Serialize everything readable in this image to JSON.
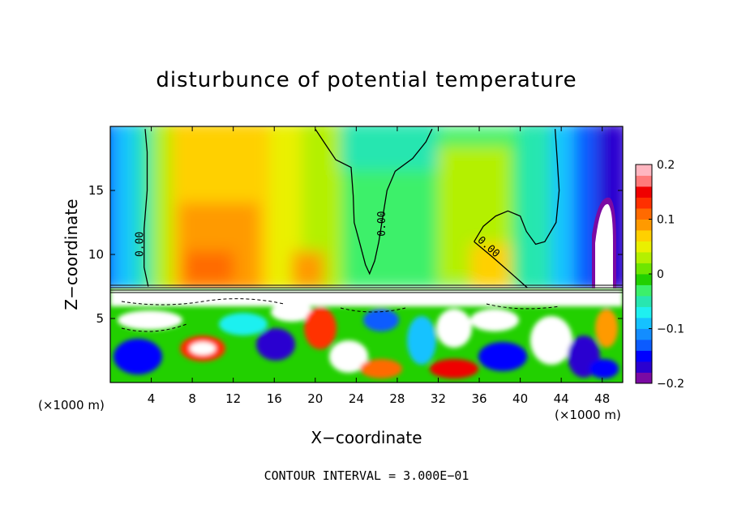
{
  "chart_data": {
    "type": "heatmap",
    "title": "disturbunce of potential temperature",
    "xlabel": "X−coordinate",
    "ylabel": "Z−coordinate",
    "x_unit": "(×1000 m)",
    "z_unit": "(×1000 m)",
    "xlim": [
      0,
      50
    ],
    "ylim": [
      0,
      20
    ],
    "x_ticks": [
      4,
      8,
      12,
      16,
      20,
      24,
      28,
      32,
      36,
      40,
      44,
      48
    ],
    "y_ticks": [
      5,
      10,
      15
    ],
    "colorbar": {
      "range": [
        -0.2,
        0.2
      ],
      "ticks": [
        {
          "value": 0.2,
          "label": "0.2"
        },
        {
          "value": 0.1,
          "label": "0.1"
        },
        {
          "value": 0,
          "label": "0"
        },
        {
          "value": -0.1,
          "label": "−0.1"
        },
        {
          "value": -0.2,
          "label": "−0.2"
        }
      ],
      "colors": [
        "#7b0aa3",
        "#2a00d0",
        "#0000ff",
        "#0b5bff",
        "#138dff",
        "#15c2ff",
        "#1ff0f0",
        "#28e6b0",
        "#3cf06a",
        "#22d000",
        "#6ee600",
        "#b4f000",
        "#eaf000",
        "#ffd000",
        "#ff9a00",
        "#ff6a00",
        "#ff3000",
        "#f00000",
        "#ff7a7a",
        "#ffb6c0"
      ]
    },
    "contour_labels": [
      {
        "x": 3.2,
        "z": 10.8,
        "text": "0.00",
        "rotate": -90
      },
      {
        "x": 26.8,
        "z": 12.4,
        "text": "0.00",
        "rotate": -90
      },
      {
        "x": 36.7,
        "z": 10.4,
        "text": "0.00",
        "rotate": 42
      }
    ],
    "zero_contours": [
      [
        [
          3.4,
          19.8
        ],
        [
          3.6,
          18
        ],
        [
          3.6,
          15
        ],
        [
          3.3,
          12
        ],
        [
          3.3,
          9
        ],
        [
          3.7,
          7.5
        ]
      ],
      [
        [
          20,
          19.8
        ],
        [
          21,
          18.6
        ],
        [
          22,
          17.4
        ],
        [
          23.5,
          16.8
        ],
        [
          23.7,
          14.6
        ],
        [
          23.8,
          12.5
        ],
        [
          24.3,
          11
        ],
        [
          24.9,
          9.2
        ],
        [
          25.3,
          8.5
        ],
        [
          25.8,
          9.5
        ],
        [
          26.2,
          11
        ],
        [
          26.6,
          13
        ],
        [
          27,
          15
        ],
        [
          27.8,
          16.5
        ],
        [
          29.5,
          17.5
        ],
        [
          30.8,
          18.8
        ],
        [
          31.4,
          19.8
        ]
      ],
      [
        [
          35.5,
          11
        ],
        [
          36.4,
          12.2
        ],
        [
          37.6,
          13
        ],
        [
          38.8,
          13.4
        ],
        [
          40,
          13
        ],
        [
          40.6,
          11.8
        ],
        [
          41.5,
          10.8
        ],
        [
          42.4,
          11
        ],
        [
          43.5,
          12.5
        ],
        [
          43.8,
          15
        ],
        [
          43.6,
          17.5
        ],
        [
          43.4,
          19.8
        ]
      ],
      [
        [
          35.5,
          11
        ],
        [
          37.3,
          9.8
        ],
        [
          39,
          8.6
        ],
        [
          40.7,
          7.4
        ]
      ]
    ],
    "footer": "CONTOUR INTERVAL = 3.000E−01"
  }
}
